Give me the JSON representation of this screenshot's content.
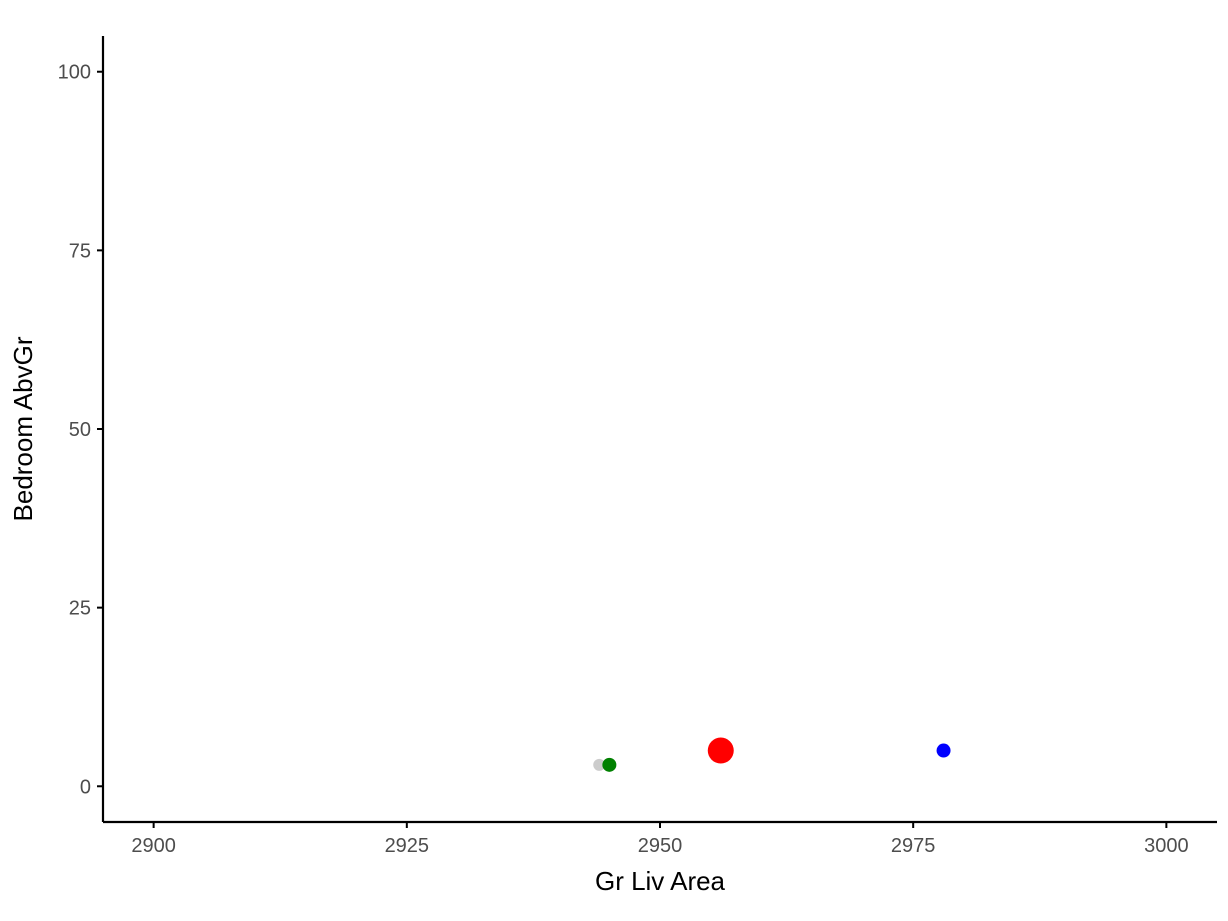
{
  "chart_data": {
    "type": "scatter",
    "title": "",
    "xlabel": "Gr Liv Area",
    "ylabel": "Bedroom AbvGr",
    "xlim": [
      2895,
      3005
    ],
    "ylim": [
      -5,
      105
    ],
    "x_ticks": [
      2900,
      2925,
      2950,
      2975,
      3000
    ],
    "y_ticks": [
      0,
      25,
      50,
      75,
      100
    ],
    "grid": false,
    "legend": "none",
    "points": [
      {
        "x": 2944,
        "y": 3,
        "color": "#cccccc",
        "size": "small"
      },
      {
        "x": 2945,
        "y": 3,
        "color": "#008000",
        "size": "medium"
      },
      {
        "x": 2956,
        "y": 5,
        "color": "#ff0000",
        "size": "large"
      },
      {
        "x": 2978,
        "y": 5,
        "color": "#0000ff",
        "size": "medium"
      }
    ]
  }
}
